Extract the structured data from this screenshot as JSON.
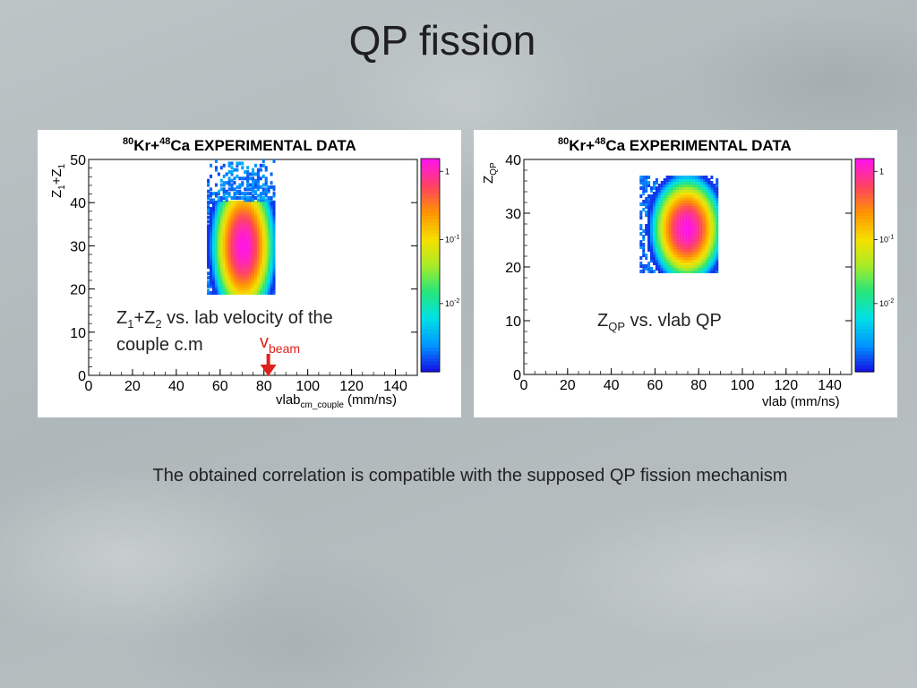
{
  "slide": {
    "title": "QP fission",
    "caption": "The obtained correlation is compatible with the supposed QP fission mechanism"
  },
  "chart_data": [
    {
      "type": "heatmap",
      "title": "80Kr+48Ca EXPERIMENTAL DATA",
      "title_parts": {
        "m1": "80",
        "e1": "Kr+",
        "m2": "48",
        "e2": "Ca EXPERIMENTAL DATA"
      },
      "ylabel_parts": {
        "a": "Z",
        "a_sub": "1",
        "b": "+Z",
        "b_sub": "1"
      },
      "xlabel_parts": {
        "a": "vlab",
        "a_sub": "cm_couple",
        "b": " (mm/ns)"
      },
      "xlim": [
        0,
        150
      ],
      "ylim": [
        0,
        50
      ],
      "xticks": [
        0,
        20,
        40,
        60,
        80,
        100,
        120,
        140
      ],
      "yticks": [
        0,
        10,
        20,
        30,
        40,
        50
      ],
      "colorbar_ticks": [
        {
          "label": "1",
          "frac": 0.94
        },
        {
          "label": "10",
          "exp": "-1",
          "frac": 0.62
        },
        {
          "label": "10",
          "exp": "-2",
          "frac": 0.32
        }
      ],
      "annotation_parts": {
        "z1": "Z",
        "z1s": "1",
        "plus": "+Z",
        "z2s": "2",
        "rest": " vs. lab velocity of the",
        "line2": "couple c.m"
      },
      "marker": {
        "label": "v",
        "label_sub": "beam",
        "x": 82
      },
      "distribution": {
        "center_x": 70,
        "center_y": 30,
        "y_min": 19,
        "y_max": 50,
        "x_min": 54,
        "x_max": 85
      }
    },
    {
      "type": "heatmap",
      "title": "80Kr+48Ca EXPERIMENTAL DATA",
      "title_parts": {
        "m1": "80",
        "e1": "Kr+",
        "m2": "48",
        "e2": "Ca EXPERIMENTAL DATA"
      },
      "ylabel_parts": {
        "a": "Z",
        "a_sub": "QP"
      },
      "xlabel_parts": {
        "a": "vlab (mm/ns)"
      },
      "xlim": [
        0,
        150
      ],
      "ylim": [
        0,
        40
      ],
      "xticks": [
        0,
        20,
        40,
        60,
        80,
        100,
        120,
        140
      ],
      "yticks": [
        0,
        10,
        20,
        30,
        40
      ],
      "colorbar_ticks": [
        {
          "label": "1",
          "frac": 0.94
        },
        {
          "label": "10",
          "exp": "-1",
          "frac": 0.62
        },
        {
          "label": "10",
          "exp": "-2",
          "frac": 0.32
        }
      ],
      "annotation_parts": {
        "z": "Z",
        "zs": "QP",
        "rest": " vs. vlab QP"
      },
      "distribution": {
        "center_x": 74,
        "center_y": 27,
        "y_min": 19,
        "y_max": 37,
        "x_min": 53,
        "x_max": 88
      }
    }
  ]
}
